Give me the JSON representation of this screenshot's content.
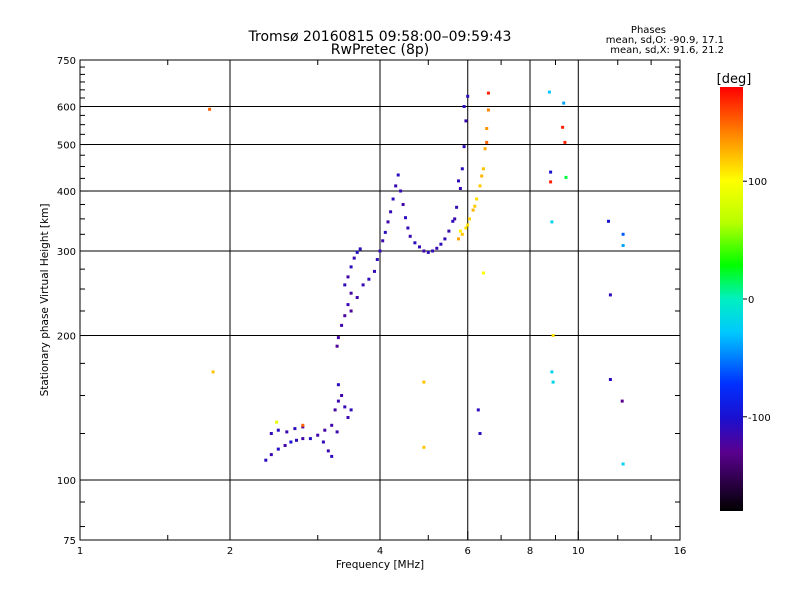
{
  "chart_data": {
    "type": "scatter",
    "title": "Tromsø 20160815 09:58:00–09:59:43",
    "subtitle": "RwPretec (8p)",
    "stats": {
      "heading": "Phases",
      "line_o": "mean, sd,O: -90.9, 17.1",
      "line_x": "mean, sd,X:  91.6, 21.2"
    },
    "xlabel": "Frequency [MHz]",
    "ylabel": "Stationary phase Virtual Height [km]",
    "x_scale": "log",
    "y_scale": "log",
    "xlim": [
      1,
      16
    ],
    "ylim": [
      75,
      750
    ],
    "x_ticks": [
      1,
      2,
      4,
      6,
      8,
      10,
      16
    ],
    "x_tick_labels": [
      "1",
      "2",
      "4",
      "6",
      "8",
      "10",
      "16"
    ],
    "x_grid": [
      2,
      4,
      6,
      8,
      10
    ],
    "y_ticks": [
      75,
      100,
      200,
      300,
      400,
      500,
      600,
      750
    ],
    "y_tick_labels": [
      "75",
      "100",
      "200",
      "300",
      "400",
      "500",
      "600",
      "750"
    ],
    "y_grid": [
      100,
      200,
      300,
      400,
      500,
      600
    ],
    "grid": true,
    "colorbar": {
      "label": "[deg]",
      "range": [
        -180,
        180
      ],
      "ticks": [
        100,
        0,
        -100
      ],
      "tick_labels": [
        "100",
        "0",
        "-100"
      ]
    },
    "series": [
      {
        "points": [
          [
            2.36,
            110,
            -110
          ],
          [
            2.42,
            113,
            -115
          ],
          [
            2.5,
            116,
            -105
          ],
          [
            2.58,
            118,
            -120
          ],
          [
            2.65,
            120,
            -100
          ],
          [
            2.72,
            121,
            -110
          ],
          [
            2.8,
            122,
            -118
          ],
          [
            2.9,
            122,
            -105
          ],
          [
            2.42,
            125,
            -112
          ],
          [
            2.5,
            127,
            -108
          ],
          [
            2.6,
            126,
            -115
          ],
          [
            2.7,
            128,
            -110
          ],
          [
            2.8,
            129,
            -120
          ],
          [
            3.0,
            124,
            -118
          ],
          [
            3.08,
            120,
            -112
          ],
          [
            3.15,
            115,
            -116
          ],
          [
            3.2,
            112,
            -110
          ],
          [
            3.1,
            127,
            -120
          ],
          [
            3.2,
            130,
            -118
          ],
          [
            3.28,
            126,
            -115
          ],
          [
            3.25,
            140,
            -120
          ],
          [
            3.3,
            146,
            -115
          ],
          [
            3.35,
            150,
            -118
          ],
          [
            3.4,
            142,
            -112
          ],
          [
            3.45,
            135,
            -116
          ],
          [
            3.5,
            140,
            -110
          ],
          [
            3.3,
            158,
            -110
          ],
          [
            3.28,
            190,
            -125
          ],
          [
            3.3,
            198,
            -120
          ],
          [
            3.35,
            210,
            -118
          ],
          [
            3.4,
            220,
            -122
          ],
          [
            3.45,
            232,
            -115
          ],
          [
            3.5,
            245,
            -120
          ],
          [
            3.4,
            255,
            -112
          ],
          [
            3.45,
            265,
            -118
          ],
          [
            3.5,
            278,
            -108
          ],
          [
            3.55,
            290,
            -115
          ],
          [
            3.6,
            298,
            -105
          ],
          [
            3.65,
            303,
            -110
          ],
          [
            3.5,
            225,
            -125
          ],
          [
            3.6,
            240,
            -118
          ],
          [
            3.7,
            255,
            -115
          ],
          [
            3.8,
            262,
            -110
          ],
          [
            3.9,
            272,
            -112
          ],
          [
            3.95,
            288,
            -110
          ],
          [
            4.0,
            300,
            -112
          ],
          [
            4.05,
            315,
            -115
          ],
          [
            4.1,
            328,
            -110
          ],
          [
            4.15,
            345,
            -118
          ],
          [
            4.2,
            362,
            -112
          ],
          [
            4.25,
            385,
            -110
          ],
          [
            4.3,
            410,
            -115
          ],
          [
            4.35,
            432,
            -108
          ],
          [
            4.4,
            400,
            -112
          ],
          [
            4.45,
            375,
            -118
          ],
          [
            4.5,
            352,
            -110
          ],
          [
            4.55,
            335,
            -112
          ],
          [
            4.6,
            322,
            -115
          ],
          [
            4.7,
            312,
            -110
          ],
          [
            4.8,
            306,
            -112
          ],
          [
            4.9,
            300,
            -118
          ],
          [
            5.0,
            298,
            -110
          ],
          [
            5.1,
            300,
            -112
          ],
          [
            5.2,
            304,
            -115
          ],
          [
            5.3,
            310,
            -110
          ],
          [
            5.4,
            318,
            -112
          ],
          [
            5.5,
            330,
            -115
          ],
          [
            5.6,
            346,
            -110
          ],
          [
            5.7,
            370,
            -112
          ],
          [
            5.8,
            405,
            -115
          ],
          [
            5.85,
            445,
            -110
          ],
          [
            5.9,
            495,
            -112
          ],
          [
            5.95,
            560,
            -115
          ],
          [
            6.0,
            630,
            -110
          ],
          [
            5.65,
            350,
            -118
          ],
          [
            5.75,
            420,
            -112
          ],
          [
            5.9,
            600,
            -110
          ]
        ]
      },
      {
        "points": [
          [
            5.75,
            318,
            130
          ],
          [
            5.85,
            325,
            120
          ],
          [
            5.95,
            335,
            110
          ],
          [
            6.05,
            350,
            115
          ],
          [
            6.15,
            365,
            125
          ],
          [
            6.25,
            385,
            112
          ],
          [
            6.35,
            410,
            118
          ],
          [
            6.45,
            445,
            120
          ],
          [
            6.5,
            490,
            128
          ],
          [
            6.55,
            540,
            135
          ],
          [
            6.6,
            590,
            140
          ],
          [
            5.8,
            330,
            105
          ],
          [
            6.0,
            340,
            112
          ],
          [
            6.2,
            372,
            118
          ],
          [
            6.4,
            430,
            125
          ],
          [
            6.55,
            505,
            150
          ]
        ]
      },
      {
        "points": [
          [
            1.82,
            592,
            150
          ],
          [
            1.85,
            168,
            120
          ],
          [
            2.48,
            132,
            90
          ],
          [
            2.8,
            130,
            150
          ],
          [
            4.9,
            160,
            120
          ],
          [
            4.9,
            117,
            120
          ],
          [
            6.45,
            270,
            100
          ],
          [
            6.3,
            140,
            -110
          ],
          [
            6.35,
            125,
            -110
          ],
          [
            6.6,
            640,
            170
          ],
          [
            8.75,
            643,
            -30
          ],
          [
            9.35,
            610,
            -40
          ],
          [
            8.8,
            438,
            -100
          ],
          [
            8.8,
            418,
            170
          ],
          [
            9.3,
            543,
            170
          ],
          [
            9.4,
            505,
            170
          ],
          [
            9.45,
            427,
            20
          ],
          [
            8.85,
            345,
            -20
          ],
          [
            8.9,
            200,
            110
          ],
          [
            8.85,
            168,
            -20
          ],
          [
            8.9,
            160,
            -20
          ],
          [
            11.5,
            346,
            -100
          ],
          [
            12.3,
            325,
            -60
          ],
          [
            12.3,
            308,
            -40
          ],
          [
            11.6,
            243,
            -110
          ],
          [
            11.6,
            162,
            -110
          ],
          [
            12.25,
            146,
            -130
          ],
          [
            12.3,
            108,
            -20
          ]
        ]
      }
    ]
  }
}
